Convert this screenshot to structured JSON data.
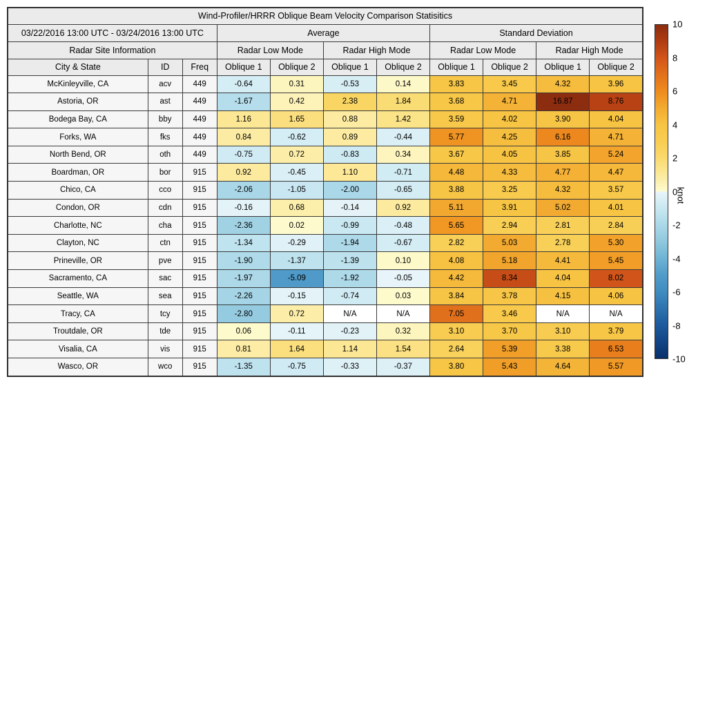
{
  "chart_data": {
    "type": "heatmap-table",
    "title": "Wind-Profiler/HRRR Oblique Beam Velocity Comparison Statisitics",
    "date_range": "03/22/2016 13:00 UTC - 03/24/2016 13:00 UTC",
    "labels": {
      "average": "Average",
      "standard_deviation": "Standard Deviation",
      "site_info": "Radar Site Information",
      "low_mode": "Radar Low Mode",
      "high_mode": "Radar High Mode",
      "city": "City & State",
      "id": "ID",
      "freq": "Freq",
      "oblique1": "Oblique 1",
      "oblique2": "Oblique 2",
      "na": "N/A"
    },
    "rows": [
      {
        "city": "McKinleyville, CA",
        "id": "acv",
        "freq": "449",
        "values": [
          "-0.64",
          "0.31",
          "-0.53",
          "0.14",
          "3.83",
          "3.45",
          "4.32",
          "3.96"
        ]
      },
      {
        "city": "Astoria, OR",
        "id": "ast",
        "freq": "449",
        "values": [
          "-1.67",
          "0.42",
          "2.38",
          "1.84",
          "3.68",
          "4.71",
          "16.87",
          "8.76"
        ]
      },
      {
        "city": "Bodega Bay, CA",
        "id": "bby",
        "freq": "449",
        "values": [
          "1.16",
          "1.65",
          "0.88",
          "1.42",
          "3.59",
          "4.02",
          "3.90",
          "4.04"
        ]
      },
      {
        "city": "Forks, WA",
        "id": "fks",
        "freq": "449",
        "values": [
          "0.84",
          "-0.62",
          "0.89",
          "-0.44",
          "5.77",
          "4.25",
          "6.16",
          "4.71"
        ]
      },
      {
        "city": "North Bend, OR",
        "id": "oth",
        "freq": "449",
        "values": [
          "-0.75",
          "0.72",
          "-0.83",
          "0.34",
          "3.67",
          "4.05",
          "3.85",
          "5.24"
        ]
      },
      {
        "city": "Boardman, OR",
        "id": "bor",
        "freq": "915",
        "values": [
          "0.92",
          "-0.45",
          "1.10",
          "-0.71",
          "4.48",
          "4.33",
          "4.77",
          "4.47"
        ]
      },
      {
        "city": "Chico, CA",
        "id": "cco",
        "freq": "915",
        "values": [
          "-2.06",
          "-1.05",
          "-2.00",
          "-0.65",
          "3.88",
          "3.25",
          "4.32",
          "3.57"
        ]
      },
      {
        "city": "Condon, OR",
        "id": "cdn",
        "freq": "915",
        "values": [
          "-0.16",
          "0.68",
          "-0.14",
          "0.92",
          "5.11",
          "3.91",
          "5.02",
          "4.01"
        ]
      },
      {
        "city": "Charlotte, NC",
        "id": "cha",
        "freq": "915",
        "values": [
          "-2.36",
          "0.02",
          "-0.99",
          "-0.48",
          "5.65",
          "2.94",
          "2.81",
          "2.84"
        ]
      },
      {
        "city": "Clayton, NC",
        "id": "ctn",
        "freq": "915",
        "values": [
          "-1.34",
          "-0.29",
          "-1.94",
          "-0.67",
          "2.82",
          "5.03",
          "2.78",
          "5.30"
        ]
      },
      {
        "city": "Prineville, OR",
        "id": "pve",
        "freq": "915",
        "values": [
          "-1.90",
          "-1.37",
          "-1.39",
          "0.10",
          "4.08",
          "5.18",
          "4.41",
          "5.45"
        ]
      },
      {
        "city": "Sacramento, CA",
        "id": "sac",
        "freq": "915",
        "values": [
          "-1.97",
          "-5.09",
          "-1.92",
          "-0.05",
          "4.42",
          "8.34",
          "4.04",
          "8.02"
        ]
      },
      {
        "city": "Seattle, WA",
        "id": "sea",
        "freq": "915",
        "values": [
          "-2.26",
          "-0.15",
          "-0.74",
          "0.03",
          "3.84",
          "3.78",
          "4.15",
          "4.06"
        ]
      },
      {
        "city": "Tracy, CA",
        "id": "tcy",
        "freq": "915",
        "values": [
          "-2.80",
          "0.72",
          "N/A",
          "N/A",
          "7.05",
          "3.46",
          "N/A",
          "N/A"
        ]
      },
      {
        "city": "Troutdale, OR",
        "id": "tde",
        "freq": "915",
        "values": [
          "0.06",
          "-0.11",
          "-0.23",
          "0.32",
          "3.10",
          "3.70",
          "3.10",
          "3.79"
        ]
      },
      {
        "city": "Visalia, CA",
        "id": "vis",
        "freq": "915",
        "values": [
          "0.81",
          "1.64",
          "1.14",
          "1.54",
          "2.64",
          "5.39",
          "3.38",
          "6.53"
        ]
      },
      {
        "city": "Wasco, OR",
        "id": "wco",
        "freq": "915",
        "values": [
          "-1.35",
          "-0.75",
          "-0.33",
          "-0.37",
          "3.80",
          "5.43",
          "4.64",
          "5.57"
        ]
      }
    ],
    "colorbar": {
      "label": "knot",
      "min": -10,
      "max": 10,
      "ticks": [
        "10",
        "8",
        "6",
        "4",
        "2",
        "0",
        "-2",
        "-4",
        "-6",
        "-8",
        "-10"
      ],
      "stops_positive": [
        [
          0,
          "#fdfbce"
        ],
        [
          1,
          "#fce99b"
        ],
        [
          2,
          "#fada6e"
        ],
        [
          3,
          "#f8cd52"
        ],
        [
          4,
          "#f7c443"
        ],
        [
          5,
          "#f3ab31"
        ],
        [
          6,
          "#ee8c1d"
        ],
        [
          7,
          "#e2711c"
        ],
        [
          8,
          "#d2551a"
        ],
        [
          9,
          "#b03c12"
        ],
        [
          10,
          "#8c2d10"
        ]
      ],
      "stops_negative": [
        [
          0,
          "#e9f5f9"
        ],
        [
          -1,
          "#c9e8f2"
        ],
        [
          -2,
          "#abd8e8"
        ],
        [
          -3,
          "#8fc8de"
        ],
        [
          -4,
          "#6fb4d4"
        ],
        [
          -5,
          "#519bc9"
        ],
        [
          -6,
          "#3f8cc0"
        ],
        [
          -8,
          "#1c5a9e"
        ],
        [
          -10,
          "#08306b"
        ]
      ],
      "na_color": "#ffffff"
    }
  }
}
